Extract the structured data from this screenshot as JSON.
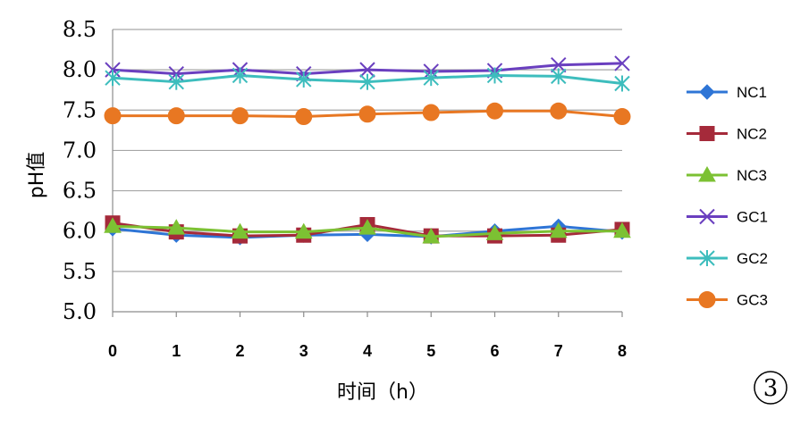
{
  "chart_data": {
    "type": "line",
    "title": "",
    "xlabel": "时间（h）",
    "ylabel": "pH值",
    "categories": [
      "0",
      "1",
      "2",
      "3",
      "4",
      "5",
      "6",
      "7",
      "8"
    ],
    "ylim": [
      5.0,
      8.5
    ],
    "yticks": [
      "5.0",
      "5.5",
      "6.0",
      "6.5",
      "7.0",
      "7.5",
      "8.0",
      "8.5"
    ],
    "grid": true,
    "legend": "right",
    "panel_label": "3",
    "series": [
      {
        "name": "NC1",
        "color": "#2E75D6",
        "marker": "diamond",
        "values": [
          6.03,
          5.95,
          5.92,
          5.95,
          5.96,
          5.93,
          6.0,
          6.06,
          5.99
        ]
      },
      {
        "name": "NC2",
        "color": "#A52A3A",
        "marker": "square",
        "values": [
          6.1,
          5.99,
          5.94,
          5.95,
          6.08,
          5.94,
          5.94,
          5.95,
          6.02
        ]
      },
      {
        "name": "NC3",
        "color": "#7CC133",
        "marker": "triangle",
        "values": [
          6.06,
          6.04,
          5.99,
          5.99,
          6.04,
          5.93,
          5.97,
          6.0,
          6.0
        ]
      },
      {
        "name": "GC1",
        "color": "#6A3FBF",
        "marker": "x",
        "values": [
          8.0,
          7.95,
          8.0,
          7.95,
          8.0,
          7.98,
          7.99,
          8.06,
          8.08
        ]
      },
      {
        "name": "GC2",
        "color": "#3DBDBD",
        "marker": "star",
        "values": [
          7.9,
          7.85,
          7.93,
          7.88,
          7.85,
          7.9,
          7.93,
          7.92,
          7.83
        ]
      },
      {
        "name": "GC3",
        "color": "#E87722",
        "marker": "circle",
        "values": [
          7.43,
          7.43,
          7.43,
          7.42,
          7.45,
          7.47,
          7.49,
          7.49,
          7.42
        ]
      }
    ]
  }
}
